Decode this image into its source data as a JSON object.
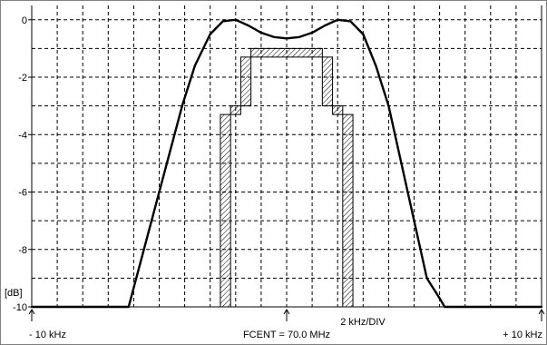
{
  "chart_data": {
    "type": "line",
    "title": "",
    "xlabel": "",
    "ylabel": "[dB]",
    "xlim": [
      -10,
      10
    ],
    "ylim": [
      -10,
      0.5
    ],
    "x_unit": "kHz",
    "grid": true,
    "grid_style": "dashed",
    "y_ticks": [
      0,
      -2,
      -4,
      -6,
      -8,
      -10
    ],
    "y_tick_labels": [
      "0",
      "-2",
      "-4",
      "-6",
      "-8",
      "-10"
    ],
    "x_annotations": {
      "left": "- 10 kHz",
      "center": "FCENT = 70.0 MHz",
      "right": "+ 10 kHz",
      "scale": "2 kHz/DIV"
    },
    "series": [
      {
        "x": [
          -10,
          -6.2,
          -5.9,
          -5.3,
          -4.7,
          -4.1,
          -3.6,
          -3.0,
          -2.5,
          -2.0,
          -1.5,
          -1.0,
          -0.5,
          0,
          0.5,
          1.0,
          1.5,
          2.0,
          2.5,
          3.0,
          3.5,
          4.0,
          4.5,
          5.0,
          5.5,
          6.0,
          6.2,
          10
        ],
        "y": [
          -10,
          -10,
          -9.0,
          -7.0,
          -5.0,
          -3.0,
          -1.6,
          -0.5,
          -0.05,
          0.0,
          -0.2,
          -0.45,
          -0.6,
          -0.65,
          -0.6,
          -0.45,
          -0.2,
          0.0,
          -0.05,
          -0.5,
          -1.6,
          -3.0,
          -5.0,
          -7.0,
          -9.0,
          -9.7,
          -10,
          -10
        ]
      }
    ],
    "mask": {
      "inner": {
        "x": [
          -2.2,
          -2.2,
          -1.4,
          -1.4,
          1.4,
          1.4,
          2.2,
          2.2
        ],
        "y": [
          -10,
          -3,
          -3,
          -1,
          -1,
          -3,
          -3,
          -10
        ]
      },
      "outer": {
        "x": [
          -2.6,
          -2.6,
          -1.8,
          -1.8,
          1.8,
          1.8,
          2.6,
          2.6
        ],
        "y": [
          -10,
          -3.3,
          -3.3,
          -1.3,
          -1.3,
          -3.3,
          -3.3,
          -10
        ]
      }
    }
  }
}
